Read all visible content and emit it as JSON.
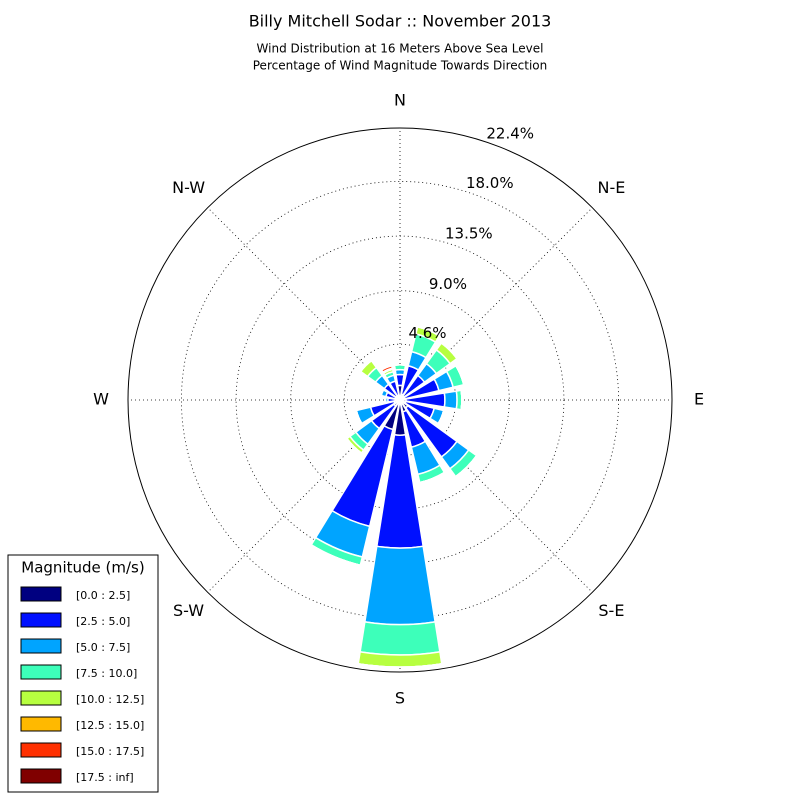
{
  "chart_data": {
    "type": "windrose",
    "title": "Billy Mitchell Sodar :: November 2013",
    "subtitle": [
      "Wind Distribution at 16 Meters Above Sea Level",
      "Percentage of Wind Magnitude Towards Direction"
    ],
    "direction_labels": [
      "N",
      "N-E",
      "E",
      "S-E",
      "S",
      "S-W",
      "W",
      "N-W"
    ],
    "categories": [
      null,
      null,
      null,
      null,
      null,
      null,
      null,
      null,
      null,
      null,
      null,
      null,
      null,
      null,
      null,
      null
    ],
    "ylim": [
      0,
      22.4
    ],
    "yticks": [
      {
        "value": 4.6,
        "label": "4.6%"
      },
      {
        "value": 9.0,
        "label": "9.0%"
      },
      {
        "value": 13.5,
        "label": "13.5%"
      },
      {
        "value": 18.0,
        "label": "18.0%"
      },
      {
        "value": 22.4,
        "label": "22.4%"
      }
    ],
    "grid": true,
    "legend_title": "Magnitude (m/s)",
    "legend_position": "lower left",
    "series": [
      {
        "name": "[0.0 : 2.5]",
        "color": "#000080",
        "values": [
          1.2,
          0.5,
          0.4,
          0.4,
          0.5,
          0.5,
          0.8,
          1.0,
          2.9,
          2.5,
          0.6,
          0.5,
          0.4,
          0.4,
          0.4,
          0.4
        ]
      },
      {
        "name": "[2.5 : 5.0]",
        "color": "#0010ff",
        "values": [
          0.9,
          2.4,
          2.1,
          2.9,
          3.2,
          2.4,
          5.0,
          3.0,
          9.3,
          8.2,
          2.3,
          2.0,
          0.6,
          0.8,
          1.2,
          1.2
        ]
      },
      {
        "name": "[5.0 : 7.5]",
        "color": "#00a4ff",
        "values": [
          0.4,
          1.2,
          1.2,
          1.2,
          1.0,
          0.8,
          1.2,
          2.3,
          6.3,
          2.6,
          1.6,
          1.2,
          0.2,
          0.4,
          0.9,
          0.5
        ]
      },
      {
        "name": "[7.5 : 10.0]",
        "color": "#3dffba",
        "values": [
          0.4,
          1.5,
          1.4,
          0.9,
          0.4,
          0,
          0.8,
          0.7,
          2.5,
          0.7,
          0.6,
          0,
          0,
          0,
          0.8,
          0.3
        ]
      },
      {
        "name": "[10.0 : 12.5]",
        "color": "#b7ff40",
        "values": [
          0,
          0.6,
          0.7,
          0,
          0,
          0,
          0,
          0,
          1.0,
          0,
          0.3,
          0,
          0,
          0,
          0.7,
          0.2
        ]
      },
      {
        "name": "[12.5 : 15.0]",
        "color": "#ffb900",
        "values": [
          0,
          0,
          0,
          0,
          0,
          0,
          0,
          0,
          0,
          0,
          0,
          0,
          0,
          0,
          0,
          0.1
        ]
      },
      {
        "name": "[15.0 : 17.5]",
        "color": "#ff3000",
        "values": [
          0,
          0,
          0,
          0,
          0,
          0,
          0,
          0,
          0,
          0,
          0,
          0,
          0,
          0,
          0,
          0.2
        ]
      },
      {
        "name": "[17.5 : inf]",
        "color": "#800000",
        "values": [
          0,
          0,
          0,
          0,
          0,
          0,
          0,
          0,
          0,
          0,
          0,
          0,
          0,
          0,
          0,
          0
        ]
      }
    ]
  }
}
